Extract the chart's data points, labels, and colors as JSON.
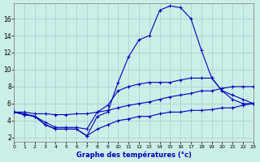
{
  "title": "Graphe des températures (°c)",
  "bg_color": "#cceee8",
  "line_color": "#0000bb",
  "grid_color": "#aacccc",
  "xlim": [
    0,
    23
  ],
  "ylim": [
    1.5,
    17.8
  ],
  "xticks": [
    0,
    1,
    2,
    3,
    4,
    5,
    6,
    7,
    8,
    9,
    10,
    11,
    12,
    13,
    14,
    15,
    16,
    17,
    18,
    19,
    20,
    21,
    22,
    23
  ],
  "yticks": [
    2,
    4,
    6,
    8,
    10,
    12,
    14,
    16
  ],
  "series": [
    {
      "x": [
        0,
        1,
        2,
        3,
        4,
        5,
        6,
        7,
        8,
        9,
        10,
        11,
        12,
        13,
        14,
        15,
        16,
        17,
        18,
        19,
        20,
        21,
        22,
        23
      ],
      "y": [
        5.0,
        4.7,
        4.5,
        3.5,
        3.0,
        3.0,
        3.0,
        2.2,
        4.5,
        5.0,
        8.5,
        11.5,
        13.5,
        14.0,
        17.0,
        17.5,
        17.3,
        16.0,
        12.3,
        9.0,
        7.5,
        6.5,
        6.0,
        6.0
      ]
    },
    {
      "x": [
        0,
        1,
        2,
        3,
        4,
        5,
        6,
        7,
        8,
        9,
        10,
        11,
        12,
        13,
        14,
        15,
        16,
        17,
        18,
        19,
        20,
        21,
        22,
        23
      ],
      "y": [
        5.0,
        4.8,
        4.5,
        3.8,
        3.2,
        3.2,
        3.2,
        3.0,
        5.0,
        5.8,
        7.5,
        8.0,
        8.3,
        8.5,
        8.5,
        8.5,
        8.8,
        9.0,
        9.0,
        9.0,
        7.5,
        7.0,
        6.5,
        6.0
      ]
    },
    {
      "x": [
        0,
        1,
        2,
        3,
        4,
        5,
        6,
        7,
        8,
        9,
        10,
        11,
        12,
        13,
        14,
        15,
        16,
        17,
        18,
        19,
        20,
        21,
        22,
        23
      ],
      "y": [
        5.0,
        5.0,
        4.8,
        4.8,
        4.7,
        4.7,
        4.8,
        4.8,
        5.0,
        5.2,
        5.5,
        5.8,
        6.0,
        6.2,
        6.5,
        6.8,
        7.0,
        7.2,
        7.5,
        7.5,
        7.8,
        8.0,
        8.0,
        8.0
      ]
    },
    {
      "x": [
        0,
        1,
        2,
        3,
        4,
        5,
        6,
        7,
        8,
        9,
        10,
        11,
        12,
        13,
        14,
        15,
        16,
        17,
        18,
        19,
        20,
        21,
        22,
        23
      ],
      "y": [
        5.0,
        4.7,
        4.5,
        3.5,
        3.0,
        3.0,
        3.0,
        2.2,
        3.0,
        3.5,
        4.0,
        4.2,
        4.5,
        4.5,
        4.8,
        5.0,
        5.0,
        5.2,
        5.2,
        5.3,
        5.5,
        5.5,
        5.8,
        6.0
      ]
    }
  ]
}
